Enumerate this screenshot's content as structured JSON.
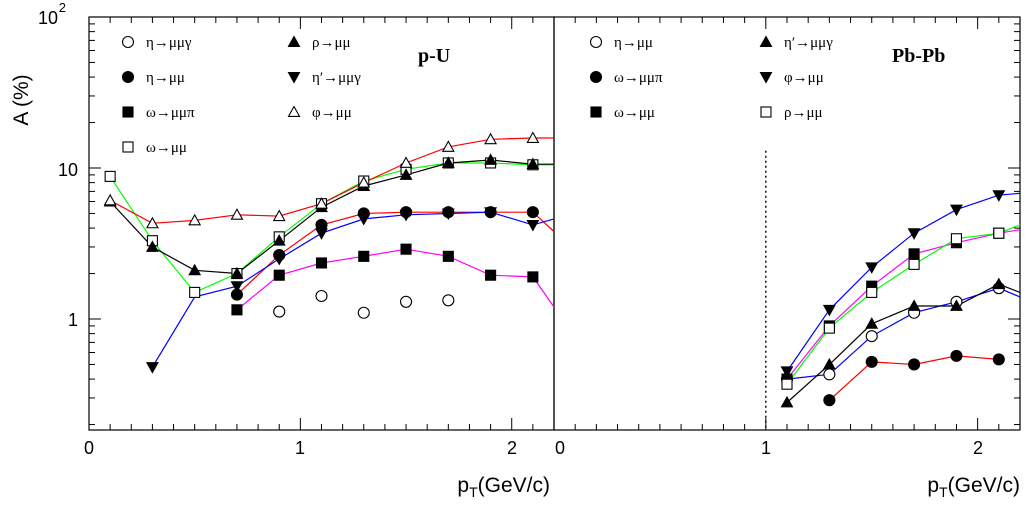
{
  "chart_data": [
    {
      "type": "line",
      "title": "p-U",
      "xlabel": "p_T(GeV/c)",
      "ylabel": "A (%)",
      "y_scale": "log",
      "ylim": [
        0.2,
        100
      ],
      "xlim": [
        0,
        2.2
      ],
      "y_ticks": [
        {
          "value": 1,
          "label": "1"
        },
        {
          "value": 10,
          "label": "10"
        },
        {
          "value": 100,
          "label": "10",
          "sup": "2"
        }
      ],
      "x_ticks": [
        {
          "value": 0,
          "label": "0"
        },
        {
          "value": 1,
          "label": "1"
        },
        {
          "value": 2,
          "label": "2"
        }
      ],
      "legend_position": "top-left",
      "series": [
        {
          "name": "η→μμγ",
          "marker": "circle-open",
          "color": "#0000ff",
          "x": [
            0.9,
            1.1,
            1.3,
            1.5,
            1.7
          ],
          "y": [
            1.12,
            1.42,
            1.1,
            1.3,
            1.33
          ],
          "curve_x": [],
          "curve_y": []
        },
        {
          "name": "η→μμ",
          "marker": "circle-filled",
          "color": "#ff0000",
          "x": [
            0.7,
            0.9,
            1.1,
            1.3,
            1.5,
            1.7,
            1.9,
            2.1
          ],
          "y": [
            1.45,
            2.65,
            4.2,
            5.0,
            5.1,
            5.1,
            5.1,
            5.1
          ],
          "curve_x": [
            0.7,
            0.9,
            1.1,
            1.3,
            1.5,
            1.7,
            1.9,
            2.1,
            2.2
          ],
          "curve_y": [
            1.45,
            2.65,
            4.2,
            5.0,
            5.1,
            5.1,
            5.1,
            5.1,
            3.8
          ]
        },
        {
          "name": "ω→μμπ",
          "marker": "square-filled",
          "color": "#ff00ff",
          "x": [
            0.7,
            0.9,
            1.1,
            1.3,
            1.5,
            1.7,
            1.9,
            2.1
          ],
          "y": [
            1.15,
            1.95,
            2.35,
            2.6,
            2.9,
            2.6,
            1.95,
            1.9
          ],
          "curve_x": [
            0.7,
            0.9,
            1.1,
            1.3,
            1.5,
            1.7,
            1.9,
            2.1,
            2.2
          ],
          "curve_y": [
            1.15,
            1.95,
            2.35,
            2.6,
            2.9,
            2.6,
            1.95,
            1.9,
            1.2
          ]
        },
        {
          "name": "ω→μμ",
          "marker": "square-open",
          "color": "#00ff00",
          "x": [
            0.1,
            0.3,
            0.5,
            0.7,
            0.9,
            1.1,
            1.3,
            1.5,
            1.7,
            1.9,
            2.1
          ],
          "y": [
            8.8,
            3.3,
            1.5,
            2.0,
            3.5,
            5.8,
            8.2,
            9.8,
            10.8,
            10.8,
            10.5
          ],
          "curve_x": [
            0.1,
            0.3,
            0.5,
            0.7,
            0.9,
            1.1,
            1.3,
            1.5,
            1.7,
            1.9,
            2.1,
            2.2
          ],
          "curve_y": [
            8.8,
            3.3,
            1.5,
            2.0,
            3.5,
            5.8,
            8.2,
            9.8,
            10.8,
            10.8,
            10.5,
            10.5
          ]
        },
        {
          "name": "ρ→μμ",
          "marker": "triangle-up-filled",
          "color": "#000000",
          "x": [
            0.1,
            0.3,
            0.5,
            0.7,
            0.9,
            1.1,
            1.3,
            1.5,
            1.7,
            1.9,
            2.1
          ],
          "y": [
            6.0,
            3.0,
            2.1,
            2.0,
            3.3,
            5.5,
            7.6,
            9.0,
            10.8,
            11.3,
            10.6
          ],
          "curve_x": [
            0.1,
            0.3,
            0.5,
            0.7,
            0.9,
            1.1,
            1.3,
            1.5,
            1.7,
            1.9,
            2.1,
            2.2
          ],
          "curve_y": [
            6.0,
            3.0,
            2.1,
            2.0,
            3.3,
            5.5,
            7.6,
            9.0,
            10.8,
            11.3,
            10.6,
            10.6
          ]
        },
        {
          "name": "η′→μμγ",
          "marker": "triangle-down-filled",
          "color": "#0000ff",
          "x": [
            0.3,
            0.7,
            0.9,
            1.1,
            1.3,
            1.5,
            1.7,
            1.9,
            2.1
          ],
          "y": [
            0.48,
            1.65,
            2.5,
            3.7,
            4.6,
            4.9,
            5.0,
            5.1,
            4.2
          ],
          "curve_x": [
            0.3,
            0.5,
            0.7,
            0.9,
            1.1,
            1.3,
            1.5,
            1.7,
            1.9,
            2.1,
            2.2
          ],
          "curve_y": [
            0.48,
            1.4,
            1.65,
            2.5,
            3.7,
            4.6,
            4.9,
            5.0,
            5.1,
            4.2,
            4.6
          ]
        },
        {
          "name": "φ→μμ",
          "marker": "triangle-up-open",
          "color": "#ff0000",
          "x": [
            0.1,
            0.3,
            0.5,
            0.7,
            0.9,
            1.1,
            1.3,
            1.5,
            1.7,
            1.9,
            2.1
          ],
          "y": [
            6.1,
            4.3,
            4.5,
            4.9,
            4.8,
            5.8,
            8.0,
            10.8,
            13.8,
            15.5,
            15.8
          ],
          "curve_x": [
            0.1,
            0.3,
            0.5,
            0.7,
            0.9,
            1.1,
            1.3,
            1.5,
            1.7,
            1.9,
            2.1,
            2.2
          ],
          "curve_y": [
            6.1,
            4.3,
            4.5,
            4.9,
            4.8,
            5.8,
            8.0,
            10.8,
            13.8,
            15.5,
            15.8,
            15.8
          ]
        }
      ]
    },
    {
      "type": "line",
      "title": "Pb-Pb",
      "xlabel": "p_T(GeV/c)",
      "ylabel": "",
      "y_scale": "log",
      "ylim": [
        0.2,
        100
      ],
      "xlim": [
        0,
        2.2
      ],
      "x_ticks": [
        {
          "value": 0,
          "label": "0"
        },
        {
          "value": 1,
          "label": "1"
        },
        {
          "value": 2,
          "label": "2"
        }
      ],
      "reference_line_x": 1,
      "legend_position": "top-left",
      "series": [
        {
          "name": "η→μμ",
          "marker": "circle-open",
          "color": "#0000ff",
          "x": [
            1.1,
            1.3,
            1.5,
            1.7,
            1.9,
            2.1
          ],
          "y": [
            0.4,
            0.43,
            0.77,
            1.1,
            1.3,
            1.6
          ],
          "curve_x": [
            1.1,
            1.3,
            1.5,
            1.7,
            1.9,
            2.1,
            2.2
          ],
          "curve_y": [
            0.4,
            0.43,
            0.77,
            1.1,
            1.3,
            1.6,
            1.4
          ]
        },
        {
          "name": "ω→μμπ",
          "marker": "circle-filled",
          "color": "#ff0000",
          "x": [
            1.3,
            1.5,
            1.7,
            1.9,
            2.1
          ],
          "y": [
            0.29,
            0.52,
            0.5,
            0.57,
            0.54
          ],
          "curve_x": [
            1.3,
            1.5,
            1.7,
            1.9,
            2.1
          ],
          "curve_y": [
            0.29,
            0.52,
            0.5,
            0.57,
            0.54
          ]
        },
        {
          "name": "ω→μμ",
          "marker": "square-filled",
          "color": "#ff00ff",
          "x": [
            1.1,
            1.3,
            1.5,
            1.7,
            1.9,
            2.1
          ],
          "y": [
            0.4,
            0.9,
            1.65,
            2.7,
            3.2,
            3.7
          ],
          "curve_x": [
            1.1,
            1.3,
            1.5,
            1.7,
            1.9,
            2.1,
            2.2
          ],
          "curve_y": [
            0.4,
            0.9,
            1.65,
            2.7,
            3.2,
            3.7,
            3.9
          ]
        },
        {
          "name": "ρ→μμ",
          "marker": "square-open",
          "color": "#00ff00",
          "x": [
            1.1,
            1.3,
            1.5,
            1.7,
            1.9,
            2.1
          ],
          "y": [
            0.37,
            0.87,
            1.5,
            2.3,
            3.4,
            3.7
          ],
          "curve_x": [
            1.1,
            1.3,
            1.5,
            1.7,
            1.9,
            2.1,
            2.2
          ],
          "curve_y": [
            0.37,
            0.87,
            1.5,
            2.3,
            3.4,
            3.7,
            4.2
          ]
        },
        {
          "name": "η′→μμγ",
          "marker": "triangle-up-filled",
          "color": "#000000",
          "x": [
            1.1,
            1.3,
            1.5,
            1.7,
            1.9,
            2.1
          ],
          "y": [
            0.28,
            0.5,
            0.93,
            1.22,
            1.22,
            1.7
          ],
          "curve_x": [
            1.1,
            1.3,
            1.5,
            1.7,
            1.9,
            2.1,
            2.2
          ],
          "curve_y": [
            0.28,
            0.5,
            0.93,
            1.22,
            1.22,
            1.7,
            1.5
          ]
        },
        {
          "name": "φ→μμ",
          "marker": "triangle-down-filled",
          "color": "#0000ff",
          "x": [
            1.1,
            1.3,
            1.5,
            1.7,
            1.9,
            2.1
          ],
          "y": [
            0.45,
            1.15,
            2.2,
            3.7,
            5.3,
            6.6
          ],
          "curve_x": [
            1.1,
            1.3,
            1.5,
            1.7,
            1.9,
            2.1,
            2.2
          ],
          "curve_y": [
            0.45,
            1.15,
            2.2,
            3.7,
            5.3,
            6.6,
            6.8
          ]
        }
      ]
    }
  ],
  "legend": {
    "left": [
      {
        "label": "η→μμγ",
        "marker": "circle-open"
      },
      {
        "label": "ρ→μμ",
        "marker": "triangle-up-filled"
      },
      {
        "label": "η→μμ",
        "marker": "circle-filled"
      },
      {
        "label": "η′→μμγ",
        "marker": "triangle-down-filled"
      },
      {
        "label": "ω→μμπ",
        "marker": "square-filled"
      },
      {
        "label": "φ→μμ",
        "marker": "triangle-up-open"
      },
      {
        "label": "ω→μμ",
        "marker": "square-open"
      }
    ],
    "right": [
      {
        "label": "η→μμ",
        "marker": "circle-open"
      },
      {
        "label": "η′→μμγ",
        "marker": "triangle-up-filled"
      },
      {
        "label": "ω→μμπ",
        "marker": "circle-filled"
      },
      {
        "label": "φ→μμ",
        "marker": "triangle-down-filled"
      },
      {
        "label": "ω→μμ",
        "marker": "square-filled"
      },
      {
        "label": "ρ→μμ",
        "marker": "square-open"
      }
    ]
  },
  "axis_text": {
    "ylabel": "A (%)",
    "y_tick_100_base": "10",
    "y_tick_100_exp": "2",
    "xlabel_base": "p",
    "xlabel_sub": "T",
    "xlabel_rest": "(GeV/c)"
  }
}
